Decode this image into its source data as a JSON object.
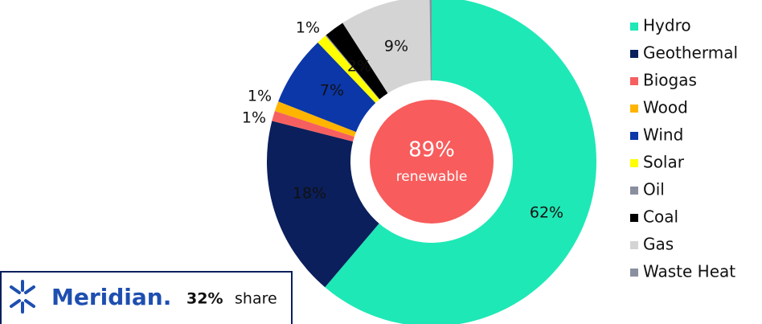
{
  "chart_data": {
    "type": "donut",
    "categories": [
      "Hydro",
      "Geothermal",
      "Biogas",
      "Wood",
      "Wind",
      "Solar",
      "Oil",
      "Coal",
      "Gas",
      "Waste Heat"
    ],
    "values": [
      62,
      18,
      1,
      1,
      7,
      1,
      0.1,
      2,
      9,
      0.2
    ],
    "value_labels": [
      "62%",
      "18%",
      "1%",
      "1%",
      "7%",
      "1%",
      null,
      "2%",
      "9%",
      null
    ],
    "colors": [
      "#1ee8b6",
      "#0b1f5c",
      "#f65f5f",
      "#ffb400",
      "#0b37a8",
      "#ffff00",
      "#8a8fa0",
      "#000000",
      "#d4d4d4",
      "#8a8fa0"
    ],
    "center_label": {
      "value": "89%",
      "text": "renewable"
    },
    "legend": "right"
  },
  "logo": {
    "brand": "Meridian.",
    "share": "32%",
    "suffix": "share"
  }
}
